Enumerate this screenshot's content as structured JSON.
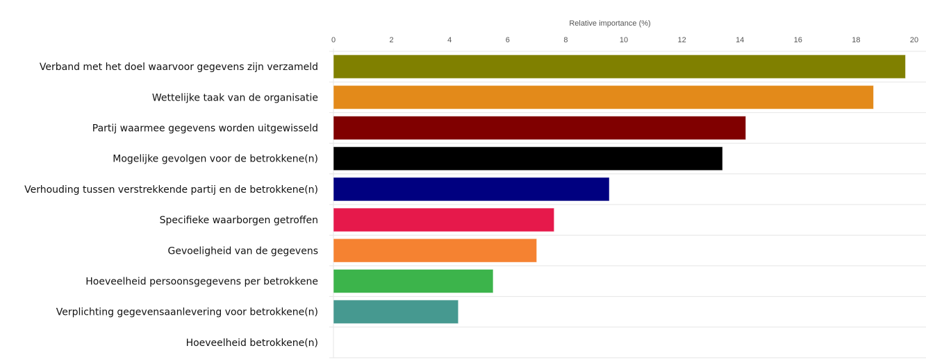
{
  "chart_data": {
    "type": "bar",
    "orientation": "horizontal",
    "title": "",
    "xlabel": "Relative importance (%)",
    "ylabel": "",
    "xlim": [
      0,
      20
    ],
    "x_ticks": [
      "0",
      "2",
      "4",
      "6",
      "8",
      "10",
      "12",
      "14",
      "16",
      "18",
      "20"
    ],
    "x_axis_position": "top",
    "grid": "horizontal row separators",
    "categories": [
      "Verband met het doel waarvoor gegevens zijn verzameld",
      "Wettelijke taak van de organisatie",
      "Partij waarmee gegevens worden uitgewisseld",
      "Mogelijke gevolgen voor de betrokkene(n)",
      "Verhouding tussen verstrekkende partij en de betrokkene(n)",
      "Specifieke waarborgen getroffen",
      "Gevoeligheid van de gegevens",
      "Hoeveelheid persoonsgegevens per betrokkene",
      "Verplichting gegevensaanlevering voor betrokkene(n)",
      "Hoeveelheid  betrokkene(n)"
    ],
    "values": [
      19.7,
      18.6,
      14.2,
      13.4,
      9.5,
      7.6,
      7.0,
      5.5,
      4.3,
      0
    ],
    "colors": [
      "#808000",
      "#e38a1a",
      "#800000",
      "#000000",
      "#000080",
      "#e6194b",
      "#f58231",
      "#3cb44b",
      "#469990",
      "#ffffff"
    ]
  }
}
